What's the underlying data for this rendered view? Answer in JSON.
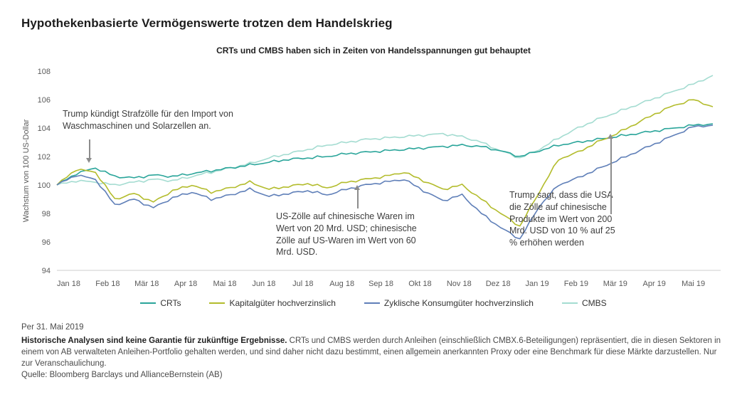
{
  "page": {
    "title": "Hypothekenbasierte Vermögenswerte trotzen dem Handelskrieg"
  },
  "chart_data": {
    "type": "line",
    "title": "CRTs und CMBS haben sich in Zeiten von Handelsspannungen gut behauptet",
    "ylabel": "Wachstum von 100 US-Dollar",
    "ylim": [
      94,
      108
    ],
    "ytick_step": 2,
    "grid": false,
    "legend_position": "bottom",
    "categories": [
      "Jan 18",
      "Feb 18",
      "Mär 18",
      "Apr 18",
      "Mai 18",
      "Jun 18",
      "Jul 18",
      "Aug 18",
      "Sep 18",
      "Okt 18",
      "Nov 18",
      "Dez 18",
      "Jan 19",
      "Feb 19",
      "Mär 19",
      "Apr 19",
      "Mai 19"
    ],
    "x_end_month": 16.8,
    "series": [
      {
        "name": "CRTs",
        "color": "#2aa59a",
        "z": 2,
        "values": [
          100.0,
          100.8,
          101.2,
          100.6,
          100.5,
          100.7,
          100.6,
          100.8,
          101.0,
          101.2,
          101.4,
          101.6,
          101.8,
          101.9,
          102.0,
          102.2,
          102.3,
          102.4,
          102.5,
          102.6,
          102.7,
          102.8,
          102.7,
          102.4,
          102.0,
          102.4,
          102.8,
          103.0,
          103.2,
          103.4,
          103.6,
          103.8,
          104.0,
          104.2,
          104.3
        ]
      },
      {
        "name": "Kapitalgüter hochverzinslich",
        "color": "#b3bc2c",
        "z": 3,
        "values": [
          100.0,
          101.1,
          100.9,
          99.0,
          99.4,
          98.8,
          99.6,
          100.0,
          99.5,
          99.8,
          100.2,
          99.7,
          99.9,
          100.1,
          99.8,
          100.2,
          100.4,
          100.6,
          100.9,
          100.3,
          99.7,
          100.0,
          99.0,
          98.0,
          97.1,
          99.5,
          101.8,
          102.3,
          103.0,
          103.6,
          104.3,
          105.0,
          105.6,
          106.0,
          105.5
        ]
      },
      {
        "name": "Zyklische Konsumgüter hochverzinslich",
        "color": "#5f7fb8",
        "z": 4,
        "values": [
          100.0,
          100.7,
          100.4,
          98.6,
          99.0,
          98.4,
          99.1,
          99.5,
          99.0,
          99.3,
          99.7,
          99.2,
          99.4,
          99.6,
          99.3,
          99.7,
          100.0,
          100.2,
          100.4,
          99.6,
          98.9,
          99.3,
          98.0,
          97.0,
          96.2,
          98.5,
          100.0,
          100.5,
          101.1,
          101.7,
          102.3,
          102.9,
          103.5,
          104.1,
          104.2
        ]
      },
      {
        "name": "CMBS",
        "color": "#a4dcd1",
        "z": 1,
        "values": [
          100.0,
          100.3,
          100.2,
          100.0,
          100.2,
          100.4,
          100.3,
          100.6,
          100.9,
          101.2,
          101.5,
          101.9,
          102.2,
          102.5,
          102.8,
          103.0,
          103.2,
          103.3,
          103.4,
          103.5,
          103.6,
          103.4,
          103.0,
          102.4,
          101.9,
          102.5,
          103.3,
          104.0,
          104.6,
          105.1,
          105.6,
          106.1,
          106.6,
          107.1,
          107.7
        ]
      }
    ],
    "annotations": [
      {
        "id": "tariffs-washers-solar",
        "text": "Trump kündigt Strafzölle für den Import von Waschmaschinen und Solarzellen an."
      },
      {
        "id": "tariffs-20-60-mrd",
        "text": "US-Zölle auf chinesische Waren im Wert von 20 Mrd. USD; chinesische Zölle auf US-Waren im Wert von 60 Mrd. USD."
      },
      {
        "id": "tariffs-10-to-25-pct",
        "text": "Trump sagt, dass die USA die Zölle auf chinesische Produkte im Wert von 200 Mrd. USD von 10 % auf 25 % erhöhen werden"
      }
    ]
  },
  "footer": {
    "as_of": "Per 31. Mai 2019",
    "disclaimer_bold": "Historische Analysen sind keine Garantie für zukünftige Ergebnisse.",
    "disclaimer_rest": " CRTs und CMBS werden durch Anleihen (einschließlich CMBX.6-Beteiligungen) repräsentiert, die in diesen Sektoren in einem von AB verwalteten Anleihen-Portfolio gehalten werden, und sind daher nicht dazu bestimmt, einen allgemein anerkannten Proxy oder eine Benchmark für diese Märkte darzustellen. Nur zur Veranschaulichung.",
    "source": "Quelle: Bloomberg Barclays und AllianceBernstein (AB)"
  }
}
